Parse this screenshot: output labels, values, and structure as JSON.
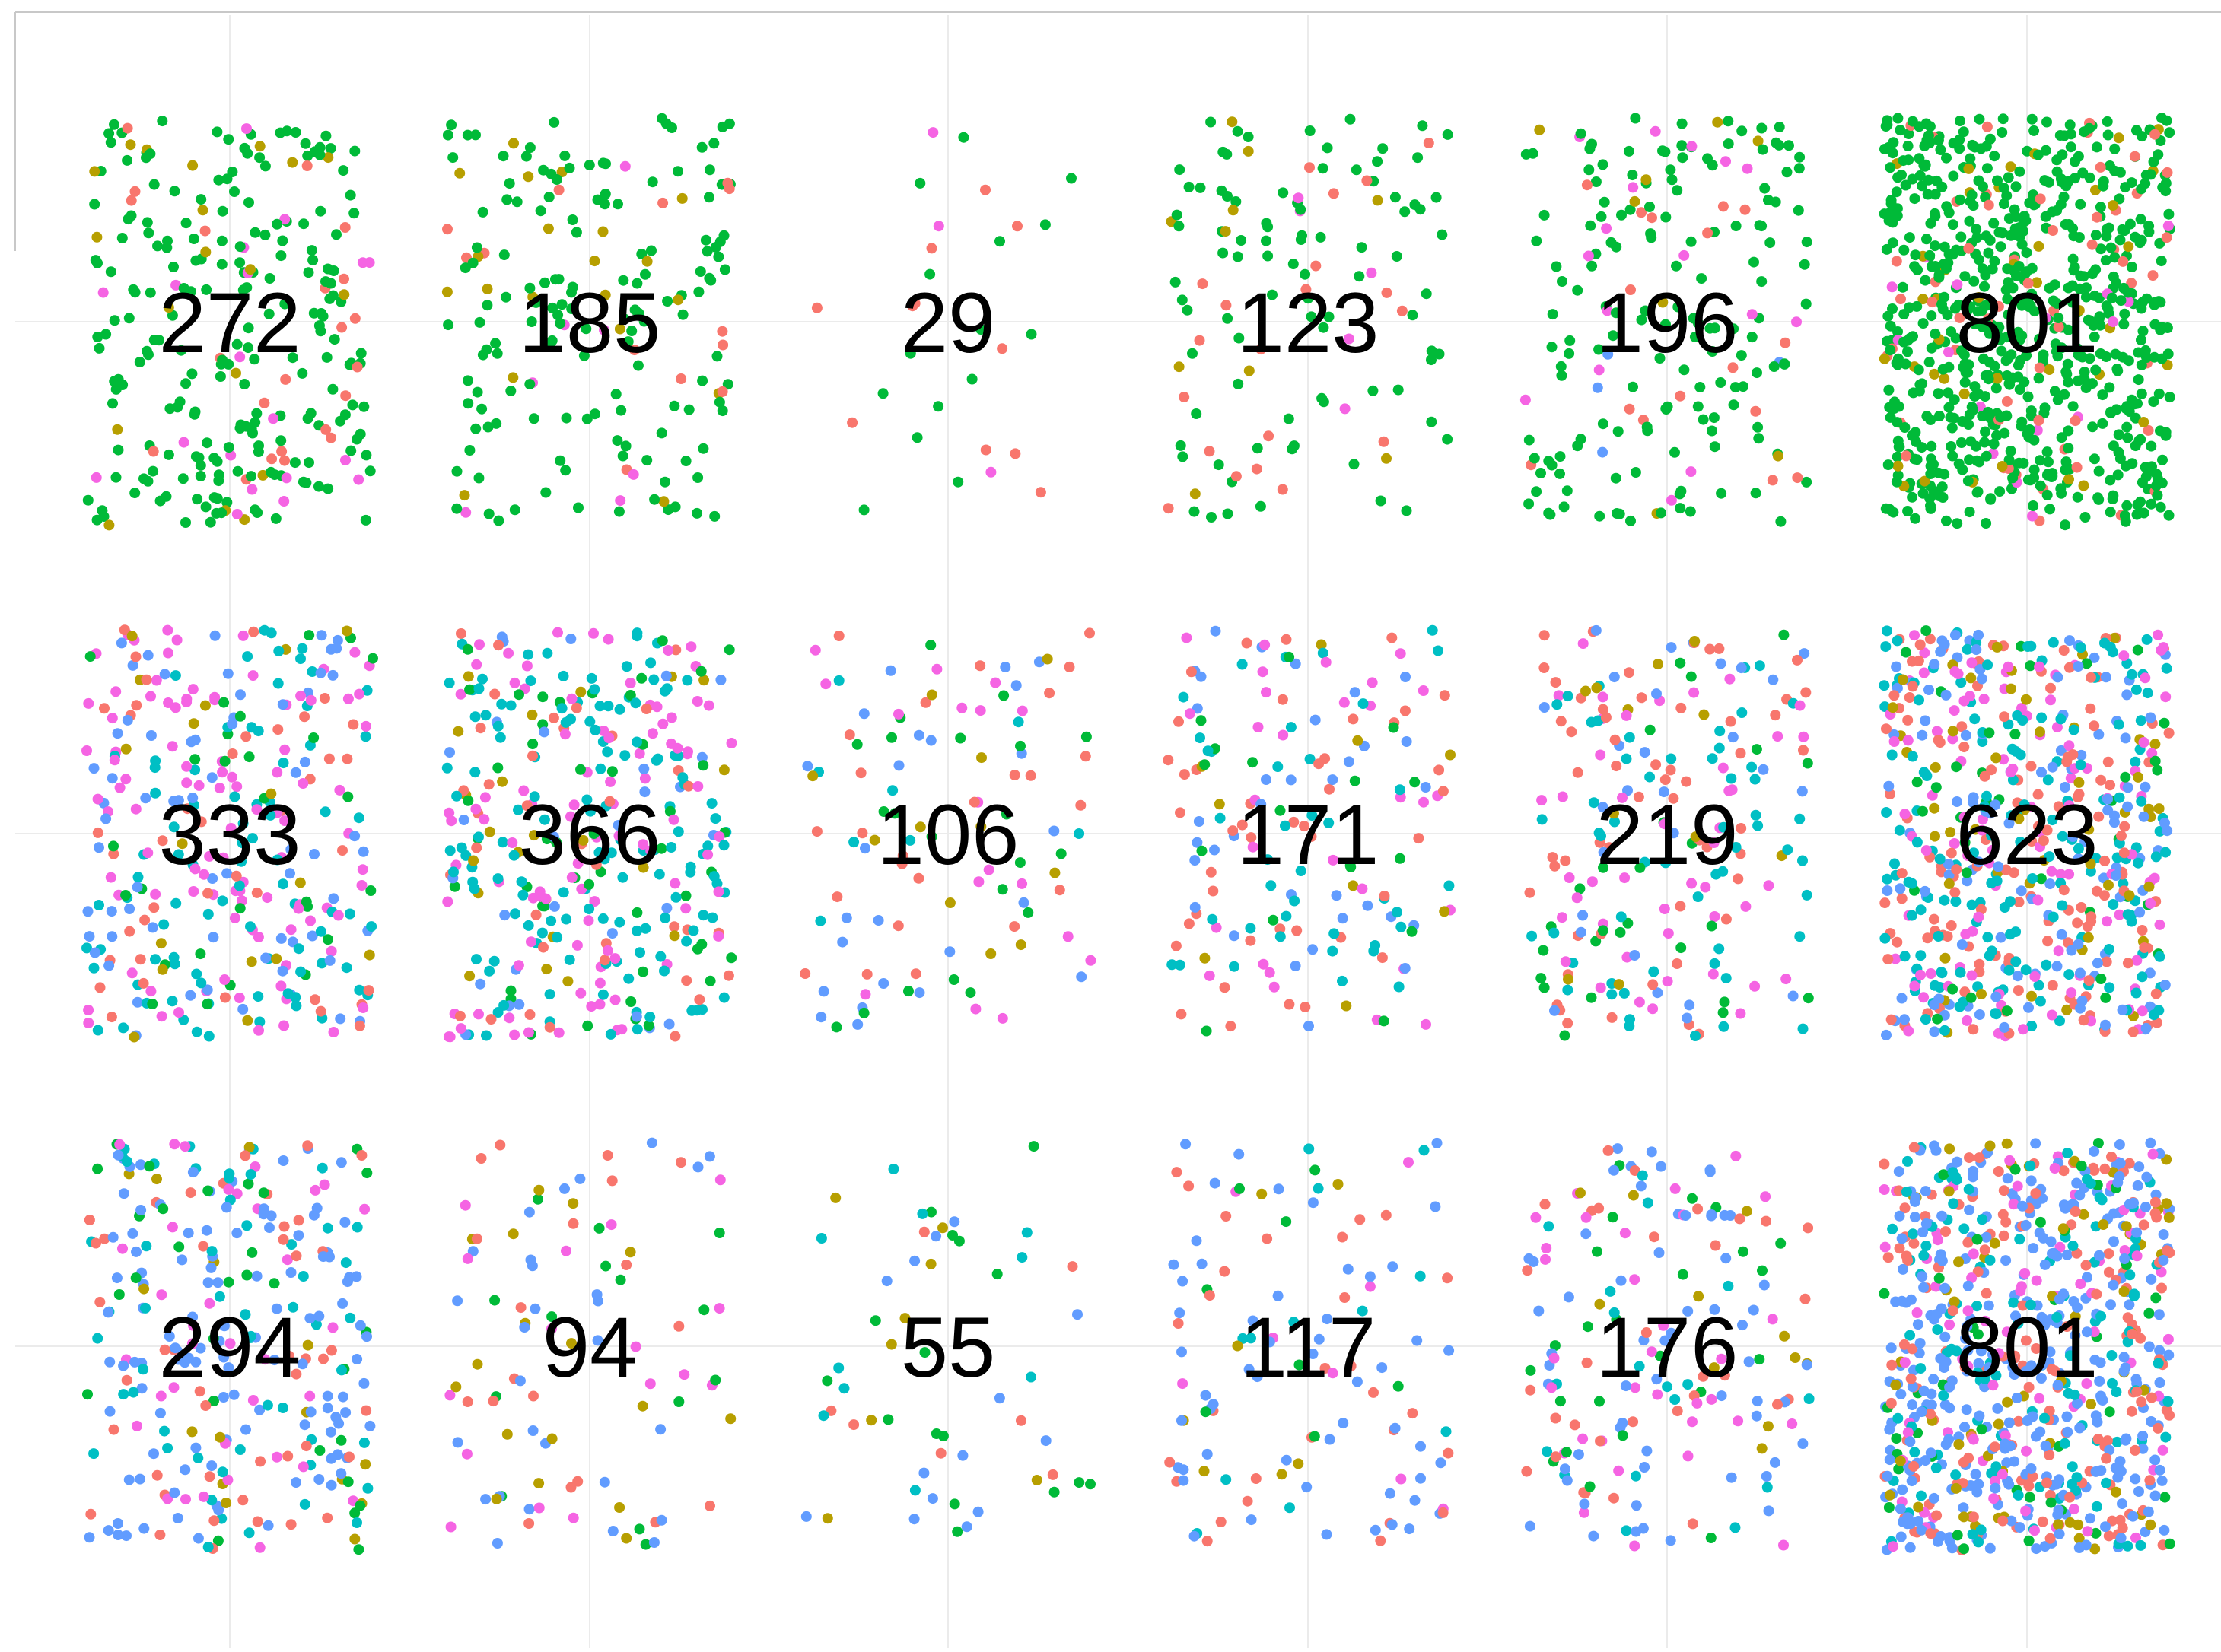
{
  "chart_data": {
    "type": "scatter",
    "title": "",
    "xlabel": "",
    "ylabel": "",
    "grid": true,
    "legend": "none",
    "palette": {
      "red": "#F8766D",
      "olive": "#B79F00",
      "green": "#00BA38",
      "teal": "#00BFC4",
      "blue": "#619CFF",
      "magenta": "#F564E3"
    },
    "cells": [
      {
        "row": 1,
        "col": 1,
        "count": 272,
        "label": "272",
        "mix": {
          "green": 0.78,
          "red": 0.08,
          "olive": 0.07,
          "magenta": 0.07
        }
      },
      {
        "row": 1,
        "col": 2,
        "count": 185,
        "label": "185",
        "mix": {
          "green": 0.78,
          "red": 0.07,
          "olive": 0.11,
          "magenta": 0.04
        }
      },
      {
        "row": 1,
        "col": 3,
        "count": 29,
        "label": "29",
        "mix": {
          "green": 0.52,
          "red": 0.38,
          "magenta": 0.1
        }
      },
      {
        "row": 1,
        "col": 4,
        "count": 123,
        "label": "123",
        "mix": {
          "green": 0.72,
          "red": 0.16,
          "olive": 0.08,
          "magenta": 0.04
        }
      },
      {
        "row": 1,
        "col": 5,
        "count": 196,
        "label": "196",
        "mix": {
          "green": 0.78,
          "red": 0.08,
          "olive": 0.04,
          "magenta": 0.08,
          "blue": 0.02
        }
      },
      {
        "row": 1,
        "col": 6,
        "count": 801,
        "label": "801",
        "mix": {
          "green": 0.86,
          "red": 0.07,
          "olive": 0.05,
          "magenta": 0.02
        }
      },
      {
        "row": 2,
        "col": 1,
        "count": 333,
        "label": "333",
        "mix": {
          "magenta": 0.3,
          "teal": 0.25,
          "blue": 0.2,
          "red": 0.12,
          "olive": 0.05,
          "green": 0.08
        }
      },
      {
        "row": 2,
        "col": 2,
        "count": 366,
        "label": "366",
        "mix": {
          "teal": 0.38,
          "magenta": 0.25,
          "green": 0.13,
          "red": 0.1,
          "olive": 0.06,
          "blue": 0.08
        }
      },
      {
        "row": 2,
        "col": 3,
        "count": 106,
        "label": "106",
        "mix": {
          "blue": 0.22,
          "red": 0.24,
          "green": 0.2,
          "magenta": 0.16,
          "olive": 0.1,
          "teal": 0.08
        }
      },
      {
        "row": 2,
        "col": 4,
        "count": 171,
        "label": "171",
        "mix": {
          "red": 0.25,
          "teal": 0.23,
          "blue": 0.2,
          "magenta": 0.17,
          "green": 0.1,
          "olive": 0.05
        }
      },
      {
        "row": 2,
        "col": 5,
        "count": 219,
        "label": "219",
        "mix": {
          "red": 0.25,
          "teal": 0.25,
          "magenta": 0.2,
          "blue": 0.13,
          "green": 0.12,
          "olive": 0.05
        }
      },
      {
        "row": 2,
        "col": 6,
        "count": 623,
        "label": "623",
        "mix": {
          "teal": 0.27,
          "red": 0.22,
          "blue": 0.2,
          "magenta": 0.17,
          "olive": 0.08,
          "green": 0.06
        }
      },
      {
        "row": 3,
        "col": 1,
        "count": 294,
        "label": "294",
        "mix": {
          "blue": 0.4,
          "teal": 0.18,
          "red": 0.15,
          "green": 0.1,
          "magenta": 0.12,
          "olive": 0.05
        }
      },
      {
        "row": 3,
        "col": 2,
        "count": 94,
        "label": "94",
        "mix": {
          "blue": 0.3,
          "red": 0.2,
          "olive": 0.18,
          "magenta": 0.17,
          "green": 0.15
        }
      },
      {
        "row": 3,
        "col": 3,
        "count": 55,
        "label": "55",
        "mix": {
          "green": 0.3,
          "blue": 0.25,
          "teal": 0.18,
          "red": 0.12,
          "olive": 0.15
        }
      },
      {
        "row": 3,
        "col": 4,
        "count": 117,
        "label": "117",
        "mix": {
          "blue": 0.45,
          "red": 0.25,
          "teal": 0.1,
          "magenta": 0.07,
          "green": 0.07,
          "olive": 0.06
        }
      },
      {
        "row": 3,
        "col": 5,
        "count": 176,
        "label": "176",
        "mix": {
          "blue": 0.35,
          "magenta": 0.18,
          "red": 0.18,
          "teal": 0.1,
          "green": 0.13,
          "olive": 0.06
        }
      },
      {
        "row": 3,
        "col": 6,
        "count": 801,
        "label": "801",
        "mix": {
          "blue": 0.42,
          "red": 0.2,
          "teal": 0.15,
          "magenta": 0.1,
          "olive": 0.08,
          "green": 0.05
        }
      }
    ]
  }
}
